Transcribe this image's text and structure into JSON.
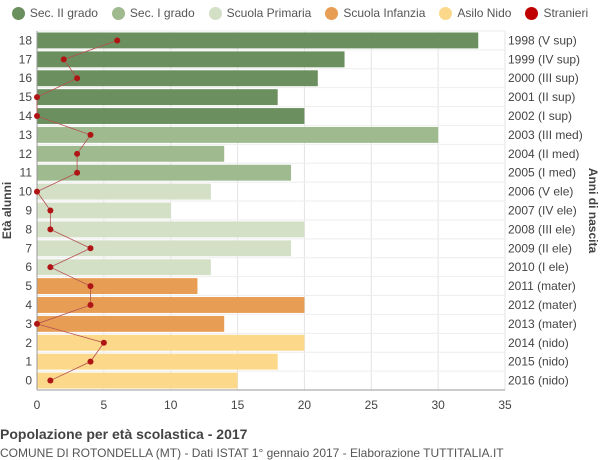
{
  "legend": [
    {
      "label": "Sec. II grado",
      "color": "#6b8f5e"
    },
    {
      "label": "Sec. I grado",
      "color": "#9fba8f"
    },
    {
      "label": "Scuola Primaria",
      "color": "#d3e0c6"
    },
    {
      "label": "Scuola Infanzia",
      "color": "#e89d55"
    },
    {
      "label": "Asilo Nido",
      "color": "#fcd88a"
    },
    {
      "label": "Stranieri",
      "color": "#c00000"
    }
  ],
  "footer": {
    "title": "Popolazione per età scolastica - 2017",
    "subtitle": "COMUNE DI ROTONDELLA (MT) - Dati ISTAT 1° gennaio 2017 - Elaborazione TUTTITALIA.IT"
  },
  "chart_data": {
    "type": "bar",
    "orientation": "horizontal",
    "ylabel": "Età alunni",
    "ylabel_right": "Anni di nascita",
    "xlim": [
      0,
      35
    ],
    "xticks": [
      0,
      5,
      10,
      15,
      20,
      25,
      30,
      35
    ],
    "grid": true,
    "legend_position": "top",
    "ages": [
      18,
      17,
      16,
      15,
      14,
      13,
      12,
      11,
      10,
      9,
      8,
      7,
      6,
      5,
      4,
      3,
      2,
      1,
      0
    ],
    "birth_years": [
      "1998 (V sup)",
      "1999 (IV sup)",
      "2000 (III sup)",
      "2001 (II sup)",
      "2002 (I sup)",
      "2003 (III med)",
      "2004 (II med)",
      "2005 (I med)",
      "2006 (V ele)",
      "2007 (IV ele)",
      "2008 (III ele)",
      "2009 (II ele)",
      "2010 (I ele)",
      "2011 (mater)",
      "2012 (mater)",
      "2013 (mater)",
      "2014 (nido)",
      "2015 (nido)",
      "2016 (nido)"
    ],
    "values": [
      33,
      23,
      21,
      18,
      20,
      30,
      14,
      19,
      13,
      10,
      20,
      19,
      13,
      12,
      20,
      14,
      20,
      18,
      15
    ],
    "groups": [
      "Sec. II grado",
      "Sec. II grado",
      "Sec. II grado",
      "Sec. II grado",
      "Sec. II grado",
      "Sec. I grado",
      "Sec. I grado",
      "Sec. I grado",
      "Scuola Primaria",
      "Scuola Primaria",
      "Scuola Primaria",
      "Scuola Primaria",
      "Scuola Primaria",
      "Scuola Infanzia",
      "Scuola Infanzia",
      "Scuola Infanzia",
      "Asilo Nido",
      "Asilo Nido",
      "Asilo Nido"
    ],
    "stranieri": [
      6,
      2,
      3,
      0,
      0,
      4,
      3,
      3,
      0,
      1,
      1,
      4,
      1,
      4,
      4,
      0,
      5,
      4,
      1
    ]
  }
}
